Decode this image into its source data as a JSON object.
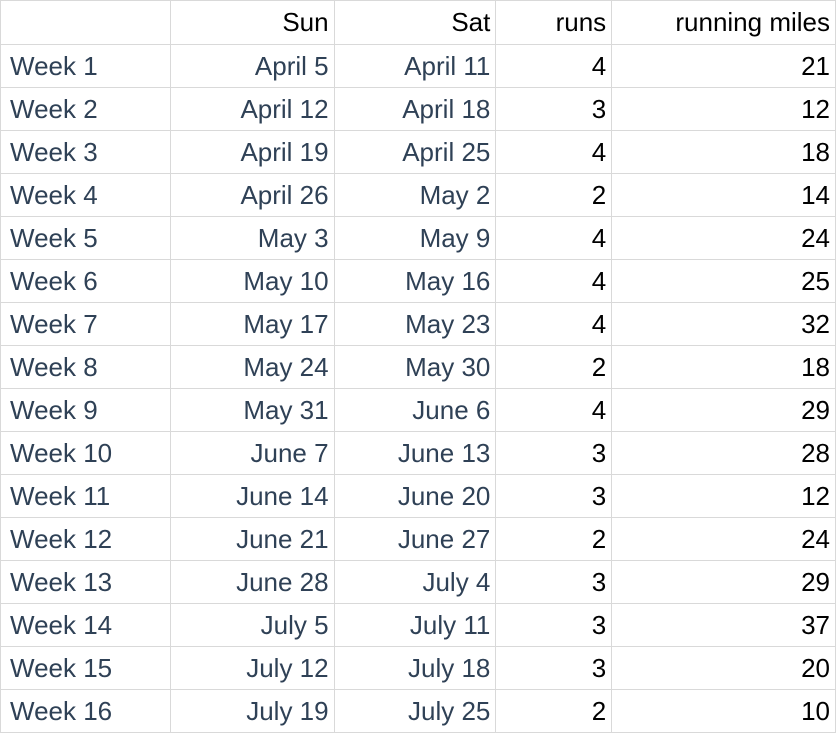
{
  "headers": [
    "",
    "Sun",
    "Sat",
    "runs",
    "running miles"
  ],
  "rows": [
    {
      "week": "Week 1",
      "sun": "April 5",
      "sat": "April 11",
      "runs": "4",
      "miles": "21"
    },
    {
      "week": "Week 2",
      "sun": "April 12",
      "sat": "April 18",
      "runs": "3",
      "miles": "12"
    },
    {
      "week": "Week 3",
      "sun": "April 19",
      "sat": "April 25",
      "runs": "4",
      "miles": "18"
    },
    {
      "week": "Week 4",
      "sun": "April 26",
      "sat": "May 2",
      "runs": "2",
      "miles": "14"
    },
    {
      "week": "Week 5",
      "sun": "May 3",
      "sat": "May 9",
      "runs": "4",
      "miles": "24"
    },
    {
      "week": "Week 6",
      "sun": "May 10",
      "sat": "May 16",
      "runs": "4",
      "miles": "25"
    },
    {
      "week": "Week 7",
      "sun": "May 17",
      "sat": "May 23",
      "runs": "4",
      "miles": "32"
    },
    {
      "week": "Week 8",
      "sun": "May 24",
      "sat": "May 30",
      "runs": "2",
      "miles": "18"
    },
    {
      "week": "Week 9",
      "sun": "May 31",
      "sat": "June 6",
      "runs": "4",
      "miles": "29"
    },
    {
      "week": "Week 10",
      "sun": "June 7",
      "sat": "June 13",
      "runs": "3",
      "miles": "28"
    },
    {
      "week": "Week 11",
      "sun": "June 14",
      "sat": "June 20",
      "runs": "3",
      "miles": "12"
    },
    {
      "week": "Week 12",
      "sun": "June 21",
      "sat": "June 27",
      "runs": "2",
      "miles": "24"
    },
    {
      "week": "Week 13",
      "sun": "June 28",
      "sat": "July 4",
      "runs": "3",
      "miles": "29"
    },
    {
      "week": "Week 14",
      "sun": "July 5",
      "sat": "July 11",
      "runs": "3",
      "miles": "37"
    },
    {
      "week": "Week 15",
      "sun": "July 12",
      "sat": "July 18",
      "runs": "3",
      "miles": "20"
    },
    {
      "week": "Week 16",
      "sun": "July 19",
      "sat": "July 25",
      "runs": "2",
      "miles": "10"
    }
  ],
  "colors": {
    "label_text": "#2f4156",
    "number_text": "#000000",
    "gridline": "#d9d9d9"
  }
}
